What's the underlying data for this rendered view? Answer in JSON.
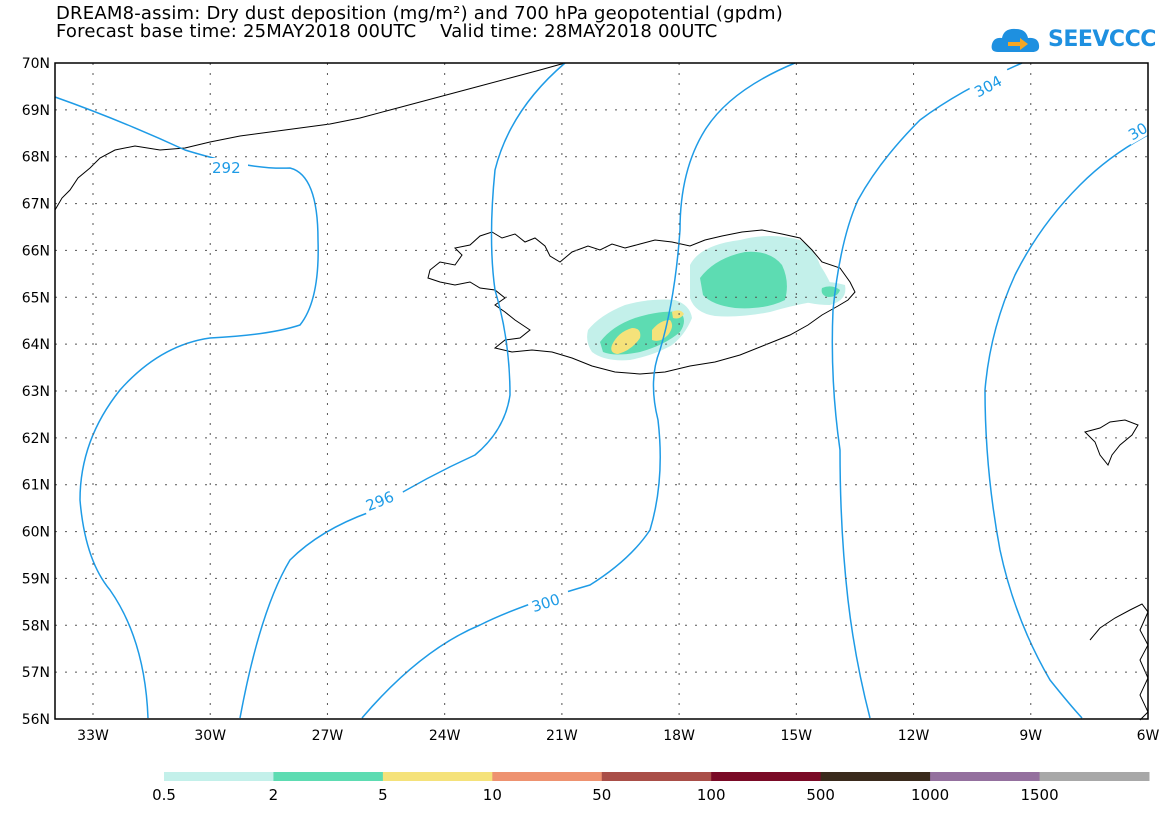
{
  "header": {
    "title_line1": "DREAM8-assim: Dry dust deposition (mg/m²) and 700 hPa geopotential (gpdm)",
    "title_line2": "Forecast base time: 25MAY2018 00UTC    Valid time: 28MAY2018 00UTC"
  },
  "logo": {
    "text": "SEEVCCC",
    "icon": "cloud-arrow-icon",
    "color": "#1e90e0"
  },
  "map": {
    "lat_labels": [
      "70N",
      "69N",
      "68N",
      "67N",
      "66N",
      "65N",
      "64N",
      "63N",
      "62N",
      "61N",
      "60N",
      "59N",
      "58N",
      "57N",
      "56N"
    ],
    "lon_labels": [
      "33W",
      "30W",
      "27W",
      "24W",
      "21W",
      "18W",
      "15W",
      "12W",
      "9W",
      "6W"
    ],
    "contour_labels": [
      "292",
      "296",
      "300",
      "304",
      "30"
    ],
    "contour_color": "#1e9be6"
  },
  "colorbar": {
    "labels": [
      "0.5",
      "2",
      "5",
      "10",
      "50",
      "100",
      "500",
      "1000",
      "1500"
    ],
    "colors": [
      "#c3f0ea",
      "#5ddcb2",
      "#f5e27a",
      "#ee9270",
      "#a94e48",
      "#7a0a26",
      "#3a2a1c",
      "#94709e",
      "#a8a8a8"
    ]
  }
}
